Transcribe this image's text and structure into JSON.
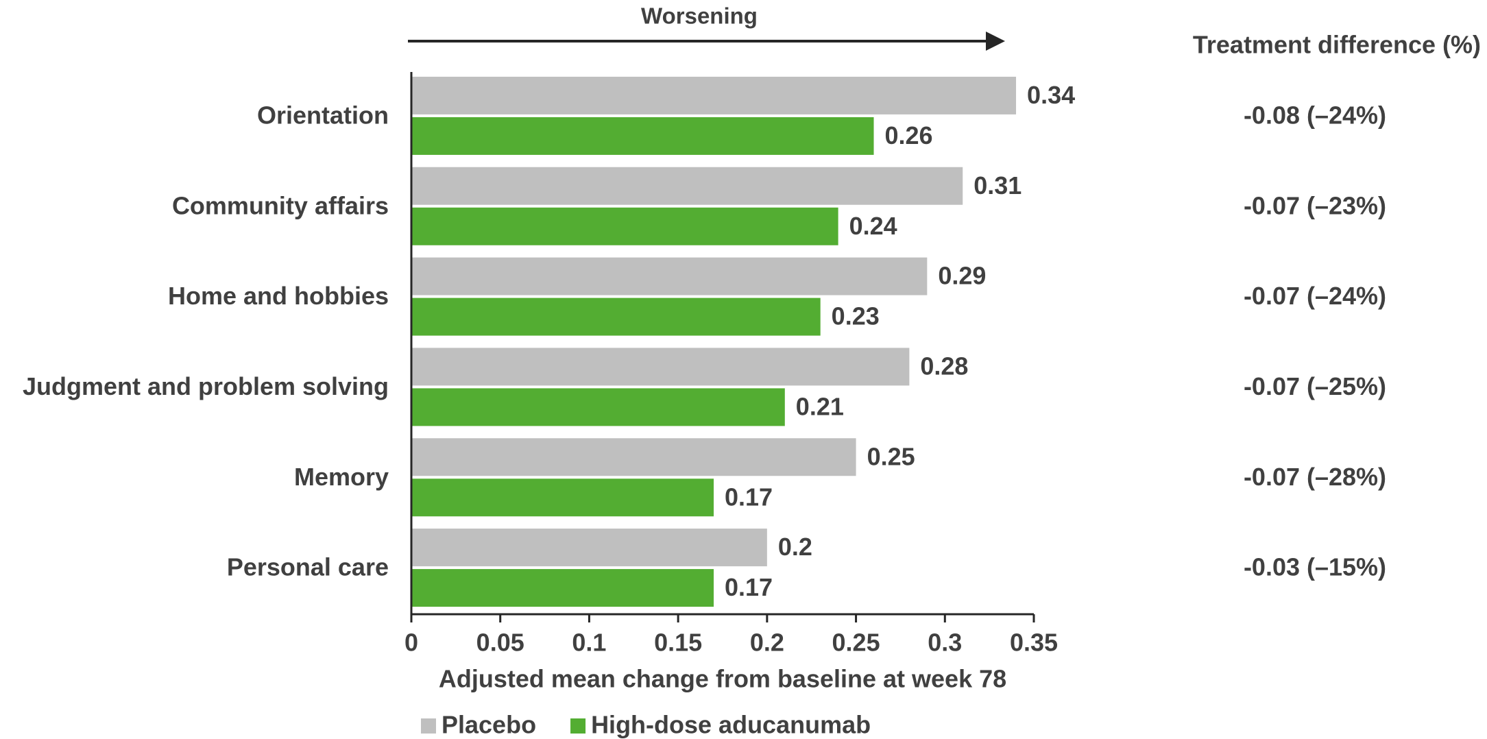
{
  "chart_data": {
    "type": "hbar",
    "x_label": "Adjusted mean change from baseline at week 78",
    "direction_label": "Worsening",
    "categories": [
      "Orientation",
      "Community affairs",
      "Home and hobbies",
      "Judgment and problem solving",
      "Memory",
      "Personal care"
    ],
    "series": [
      {
        "name": "Placebo",
        "color": "#bfbfbf",
        "values": [
          0.34,
          0.31,
          0.29,
          0.28,
          0.25,
          0.2
        ]
      },
      {
        "name": "High-dose aducanumab",
        "color": "#53ad32",
        "values": [
          0.26,
          0.24,
          0.23,
          0.21,
          0.17,
          0.17
        ]
      }
    ],
    "xlim": [
      0,
      0.35
    ],
    "xticks": [
      0,
      0.05,
      0.1,
      0.15,
      0.2,
      0.25,
      0.3,
      0.35
    ],
    "difference_header": "Treatment difference (%)",
    "differences": [
      "-0.08 (–24%)",
      "-0.07 (–23%)",
      "-0.07 (–24%)",
      "-0.07 (–25%)",
      "-0.07 (–28%)",
      "-0.03 (–15%)"
    ],
    "legend": "bottom"
  }
}
